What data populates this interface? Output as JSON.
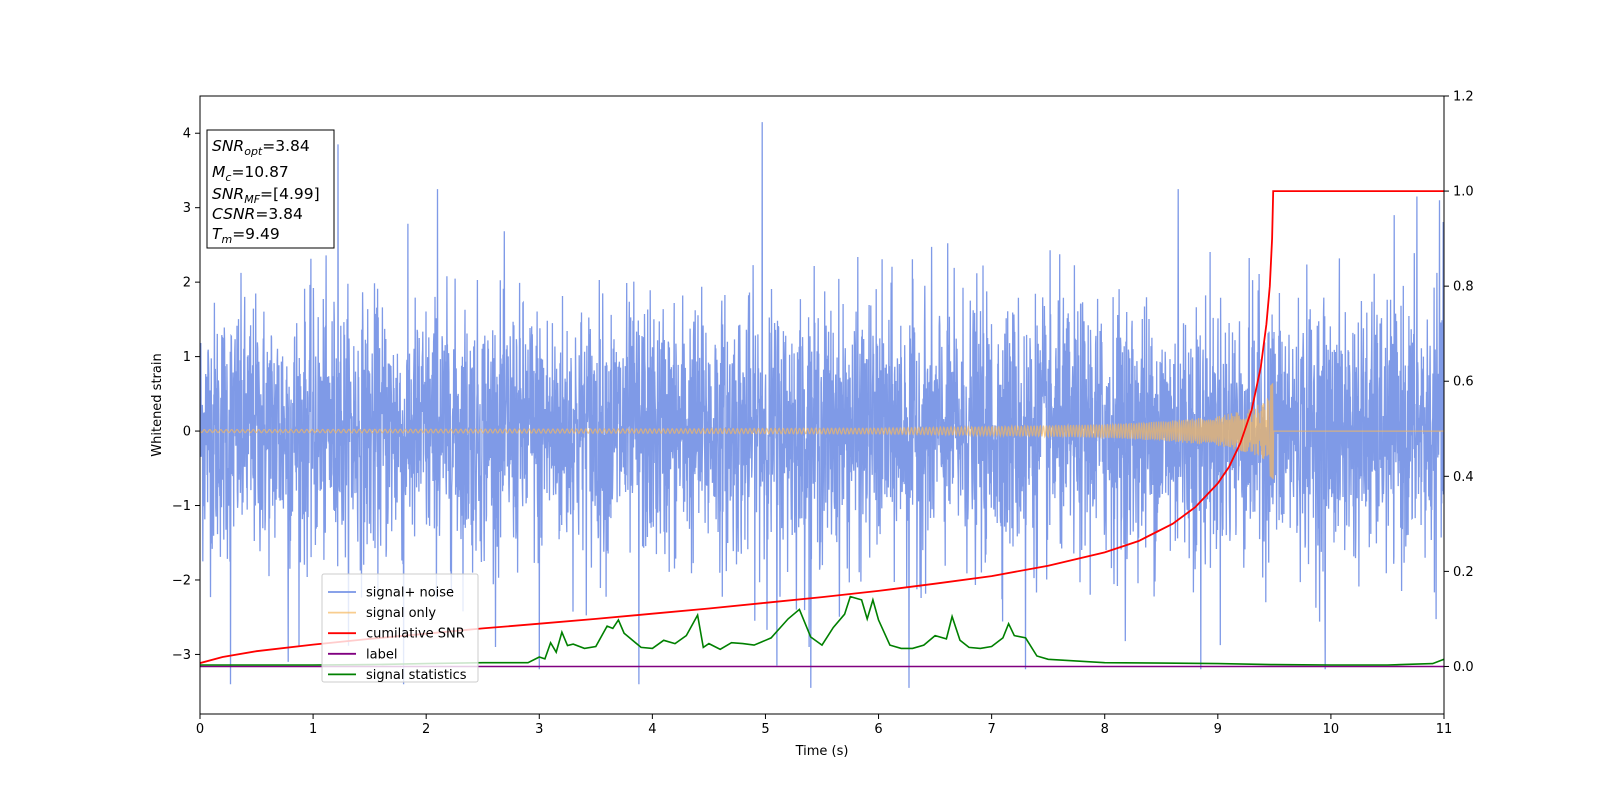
{
  "chart_data": {
    "type": "line",
    "xlabel": "Time (s)",
    "ylabel": "Whitened strain",
    "xlim": [
      0,
      11
    ],
    "ylim_left": [
      -3.8,
      4.5
    ],
    "ylim_right": [
      -0.1,
      1.2
    ],
    "x_ticks": [
      0,
      1,
      2,
      3,
      4,
      5,
      6,
      7,
      8,
      9,
      10,
      11
    ],
    "y_ticks_left": [
      -3,
      -2,
      -1,
      0,
      1,
      2,
      3,
      4
    ],
    "y_ticks_right": [
      0.0,
      0.2,
      0.4,
      0.6,
      0.8,
      1.0,
      1.2
    ],
    "grid": false,
    "legend_position": "lower-left",
    "annotation": {
      "snr_opt": "=3.84",
      "mc": "=10.87",
      "snr_mf": "=[4.99]",
      "csnr": "=3.84",
      "tm": "=9.49"
    },
    "merger_time": 9.49,
    "series": [
      {
        "name": "signal+ noise",
        "axis": "left",
        "color": "#7895e6",
        "description": "whitened noise, roughly ±1.5 with spikes to ~±3.5",
        "spikes": [
          [
            0.27,
            -3.4
          ],
          [
            0.78,
            -3.1
          ],
          [
            1.22,
            3.85
          ],
          [
            1.8,
            -3.4
          ],
          [
            2.1,
            3.25
          ],
          [
            3.0,
            -3.2
          ],
          [
            3.88,
            -3.4
          ],
          [
            4.97,
            4.15
          ],
          [
            5.1,
            -3.15
          ],
          [
            5.4,
            -3.45
          ],
          [
            6.27,
            -3.45
          ],
          [
            7.3,
            -3.2
          ],
          [
            8.65,
            3.25
          ],
          [
            8.85,
            -3.2
          ],
          [
            9.95,
            -3.2
          ],
          [
            10.76,
            3.15
          ],
          [
            10.96,
            3.1
          ]
        ]
      },
      {
        "name": "signal only",
        "axis": "left",
        "color": "#f5b860",
        "description": "chirp growing toward merger at t=9.49 s",
        "envelope": [
          [
            0,
            0.02
          ],
          [
            4,
            0.03
          ],
          [
            6,
            0.04
          ],
          [
            7,
            0.06
          ],
          [
            8,
            0.09
          ],
          [
            8.5,
            0.13
          ],
          [
            9.0,
            0.2
          ],
          [
            9.3,
            0.3
          ],
          [
            9.45,
            0.45
          ],
          [
            9.49,
            0.5
          ],
          [
            9.5,
            0.0
          ],
          [
            11,
            0.0
          ]
        ]
      },
      {
        "name": "cumilative SNR",
        "axis": "right",
        "color": "#ff0000",
        "points": [
          [
            0,
            0.007
          ],
          [
            0.2,
            0.02
          ],
          [
            0.5,
            0.032
          ],
          [
            1,
            0.046
          ],
          [
            1.5,
            0.058
          ],
          [
            2,
            0.069
          ],
          [
            2.5,
            0.08
          ],
          [
            3,
            0.09
          ],
          [
            3.5,
            0.1
          ],
          [
            4,
            0.111
          ],
          [
            4.5,
            0.122
          ],
          [
            5,
            0.134
          ],
          [
            5.5,
            0.146
          ],
          [
            6,
            0.159
          ],
          [
            6.5,
            0.174
          ],
          [
            7,
            0.19
          ],
          [
            7.5,
            0.212
          ],
          [
            8,
            0.24
          ],
          [
            8.3,
            0.264
          ],
          [
            8.6,
            0.3
          ],
          [
            8.8,
            0.335
          ],
          [
            9.0,
            0.385
          ],
          [
            9.1,
            0.42
          ],
          [
            9.2,
            0.47
          ],
          [
            9.3,
            0.54
          ],
          [
            9.38,
            0.63
          ],
          [
            9.43,
            0.72
          ],
          [
            9.46,
            0.8
          ],
          [
            9.48,
            0.9
          ],
          [
            9.49,
            1.0
          ],
          [
            11,
            1.0
          ]
        ]
      },
      {
        "name": "label",
        "axis": "right",
        "color": "#800080",
        "points": [
          [
            0,
            0.0
          ],
          [
            11,
            0.0
          ]
        ]
      },
      {
        "name": "signal statistics",
        "axis": "right",
        "color": "#008000",
        "points": [
          [
            0,
            0.003
          ],
          [
            1.0,
            0.003
          ],
          [
            1.5,
            0.004
          ],
          [
            2.0,
            0.006
          ],
          [
            2.5,
            0.008
          ],
          [
            2.9,
            0.008
          ],
          [
            3.0,
            0.02
          ],
          [
            3.05,
            0.016
          ],
          [
            3.1,
            0.05
          ],
          [
            3.15,
            0.03
          ],
          [
            3.2,
            0.072
          ],
          [
            3.25,
            0.044
          ],
          [
            3.3,
            0.047
          ],
          [
            3.4,
            0.038
          ],
          [
            3.5,
            0.042
          ],
          [
            3.6,
            0.085
          ],
          [
            3.65,
            0.08
          ],
          [
            3.7,
            0.098
          ],
          [
            3.75,
            0.07
          ],
          [
            3.8,
            0.06
          ],
          [
            3.9,
            0.04
          ],
          [
            4.0,
            0.038
          ],
          [
            4.1,
            0.055
          ],
          [
            4.2,
            0.048
          ],
          [
            4.3,
            0.065
          ],
          [
            4.4,
            0.108
          ],
          [
            4.45,
            0.04
          ],
          [
            4.5,
            0.048
          ],
          [
            4.6,
            0.036
          ],
          [
            4.7,
            0.05
          ],
          [
            4.8,
            0.048
          ],
          [
            4.9,
            0.045
          ],
          [
            5.0,
            0.055
          ],
          [
            5.05,
            0.06
          ],
          [
            5.2,
            0.1
          ],
          [
            5.3,
            0.12
          ],
          [
            5.4,
            0.062
          ],
          [
            5.5,
            0.045
          ],
          [
            5.6,
            0.082
          ],
          [
            5.7,
            0.11
          ],
          [
            5.75,
            0.147
          ],
          [
            5.85,
            0.14
          ],
          [
            5.9,
            0.1
          ],
          [
            5.95,
            0.14
          ],
          [
            6.0,
            0.098
          ],
          [
            6.1,
            0.045
          ],
          [
            6.2,
            0.038
          ],
          [
            6.3,
            0.038
          ],
          [
            6.4,
            0.045
          ],
          [
            6.5,
            0.065
          ],
          [
            6.6,
            0.058
          ],
          [
            6.65,
            0.105
          ],
          [
            6.72,
            0.055
          ],
          [
            6.8,
            0.04
          ],
          [
            6.9,
            0.038
          ],
          [
            7.0,
            0.042
          ],
          [
            7.1,
            0.06
          ],
          [
            7.15,
            0.09
          ],
          [
            7.2,
            0.065
          ],
          [
            7.3,
            0.06
          ],
          [
            7.4,
            0.022
          ],
          [
            7.5,
            0.015
          ],
          [
            8.0,
            0.008
          ],
          [
            8.5,
            0.007
          ],
          [
            9.0,
            0.006
          ],
          [
            9.5,
            0.004
          ],
          [
            10.0,
            0.003
          ],
          [
            10.5,
            0.003
          ],
          [
            10.9,
            0.006
          ],
          [
            11.0,
            0.015
          ]
        ]
      }
    ]
  }
}
